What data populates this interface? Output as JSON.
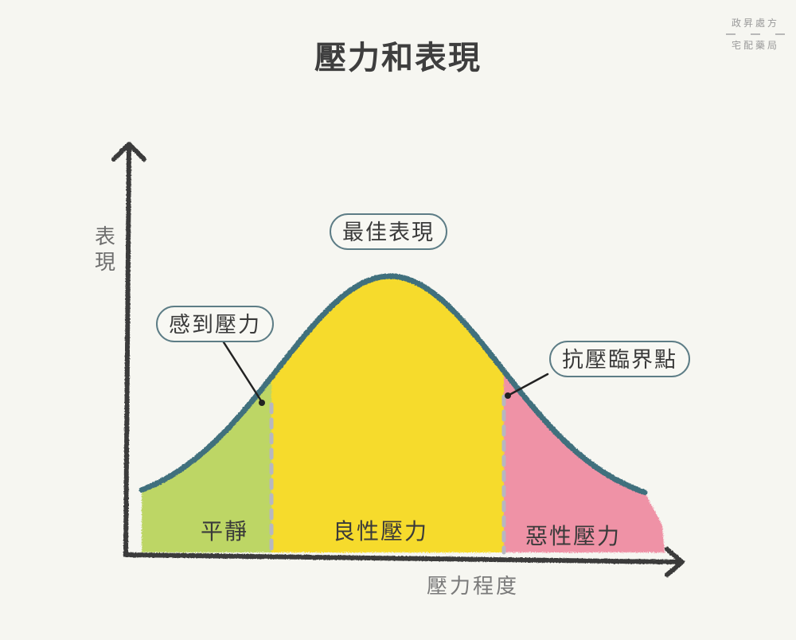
{
  "title": "壓力和表現",
  "brand": {
    "line1": "政昇處方",
    "line2": "宅配藥局"
  },
  "axes": {
    "y_label": "表現",
    "x_label": "壓力程度"
  },
  "callouts": {
    "peak": "最佳表現",
    "feel": "感到壓力",
    "critical": "抗壓臨界點"
  },
  "zones": {
    "calm": "平靜",
    "good": "良性壓力",
    "bad": "惡性壓力"
  },
  "colors": {
    "background": "#f6f6f1",
    "calm": "#b9d45a",
    "good": "#f7d91c",
    "bad": "#ef8aa0",
    "curve": "#3f6f7d",
    "axis": "#3a3a3a",
    "callout_border": "#5d7d86"
  }
}
